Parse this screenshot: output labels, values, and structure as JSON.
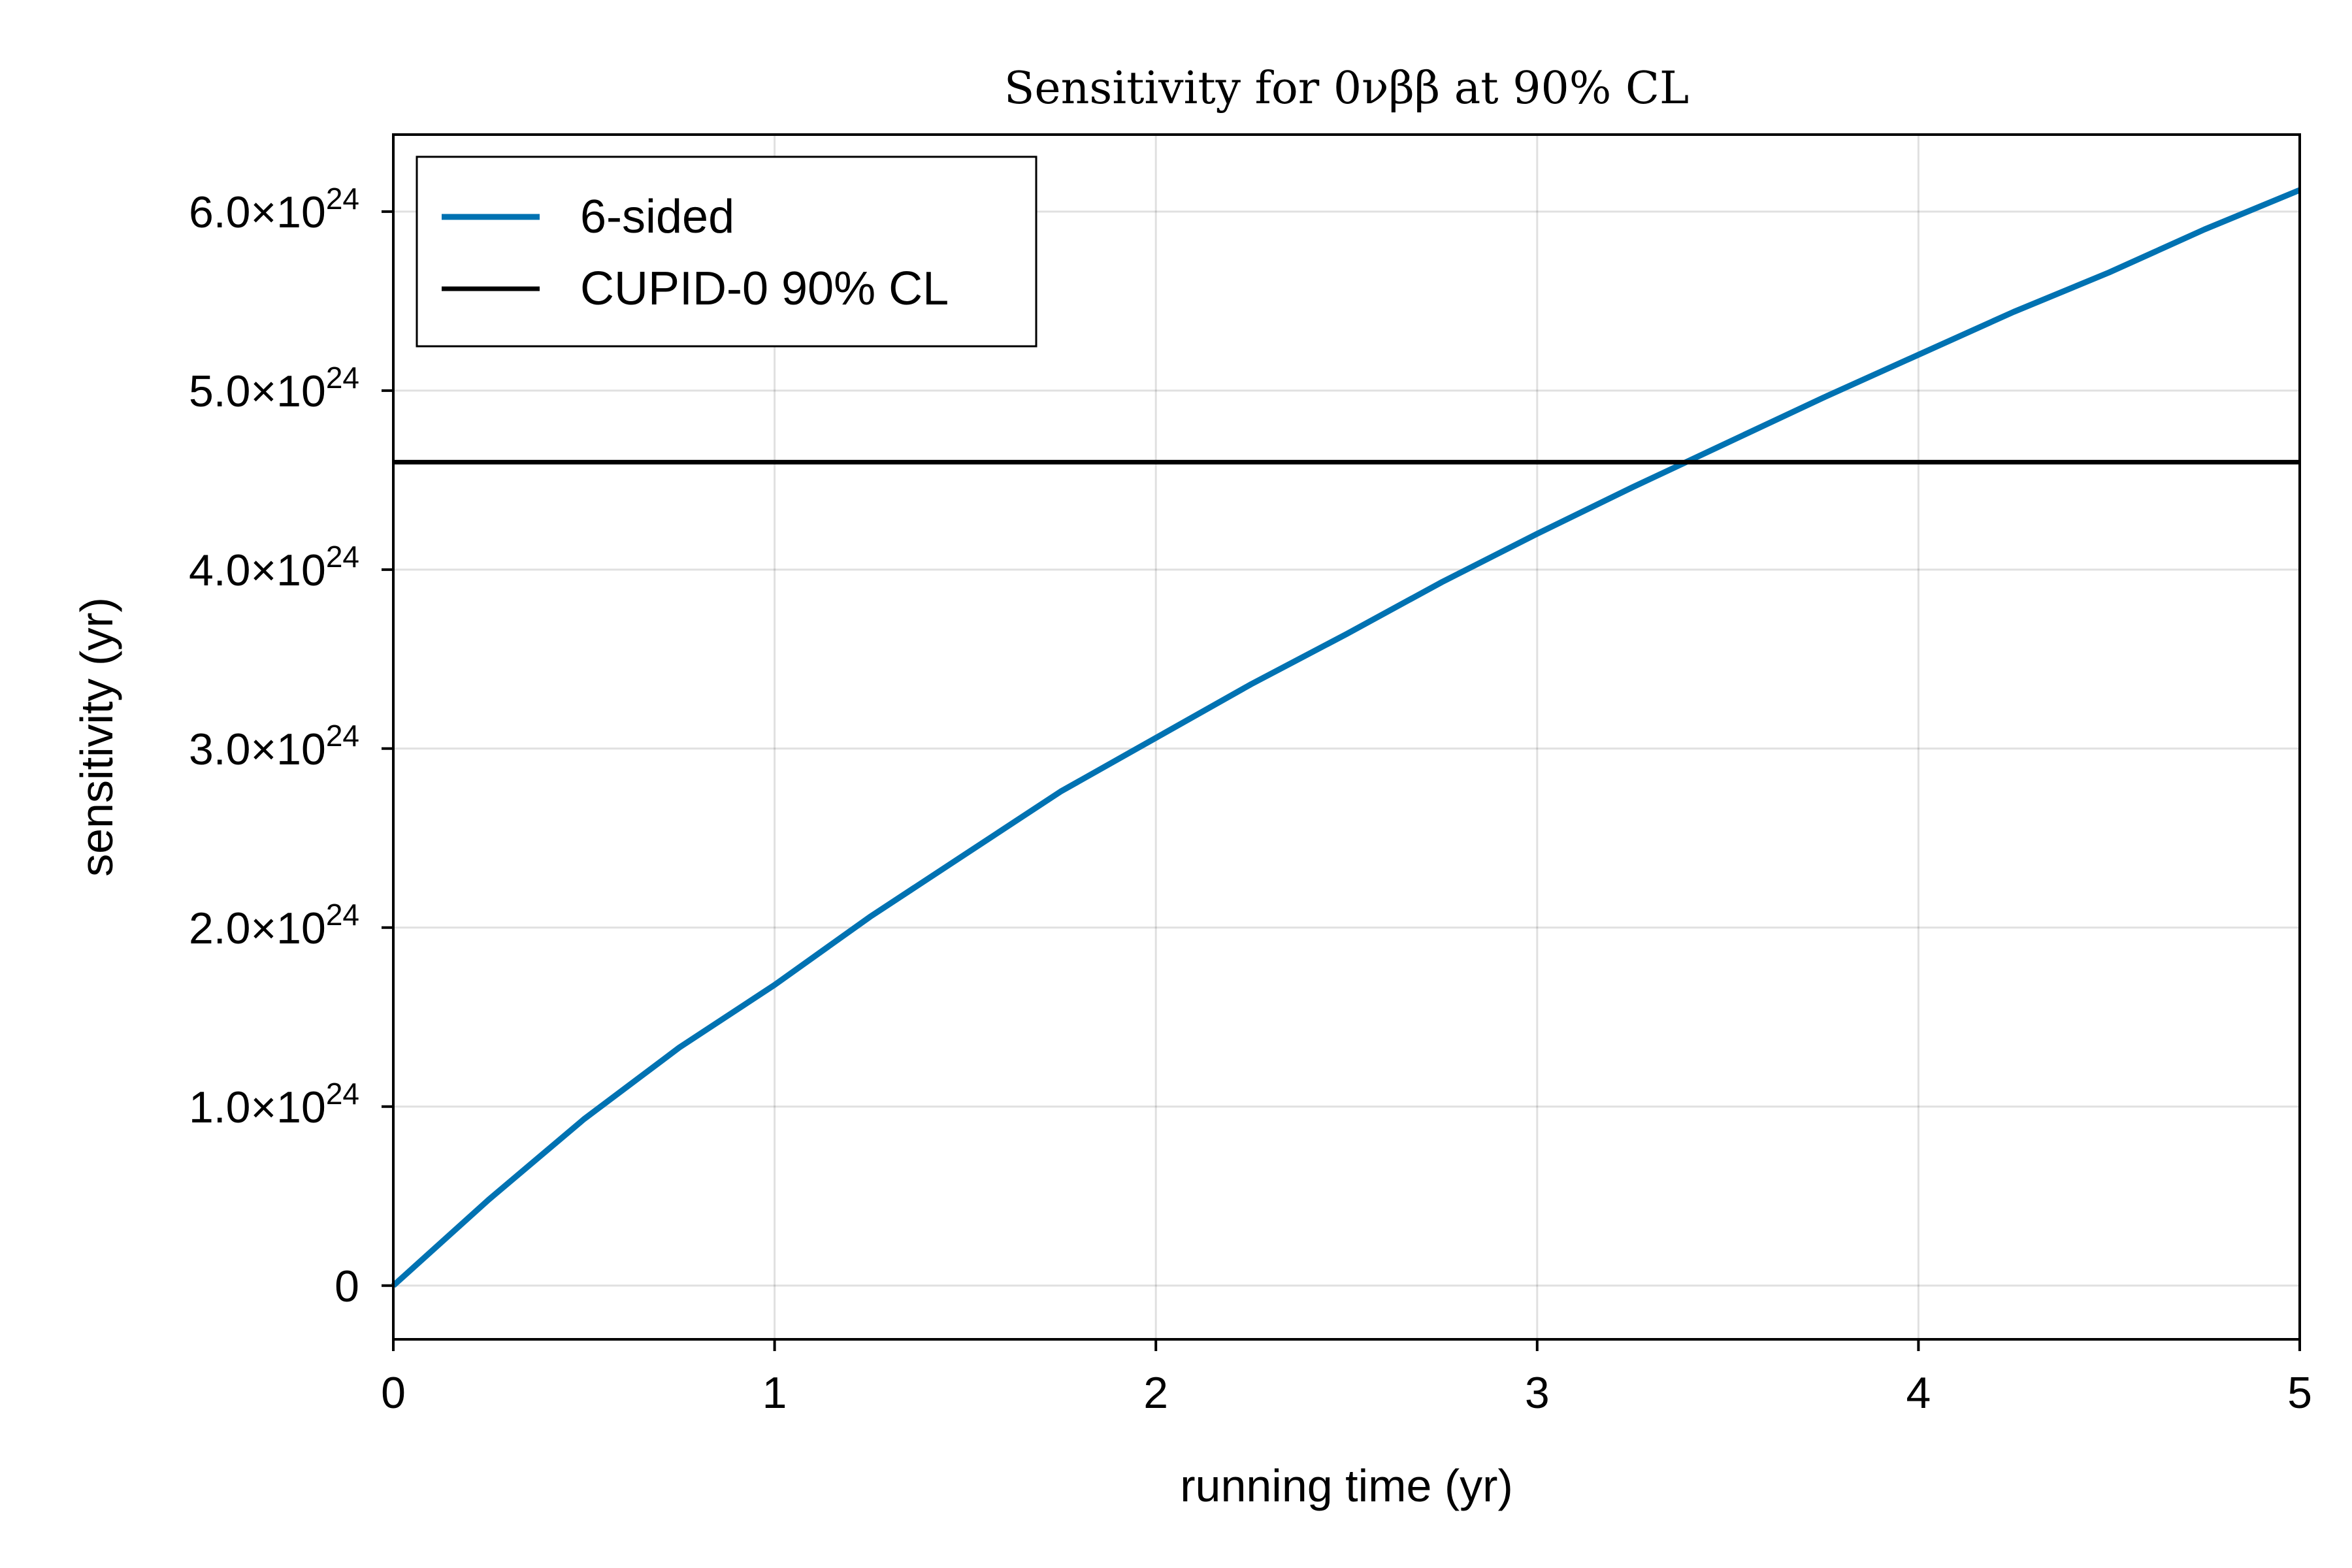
{
  "chart_data": {
    "type": "line",
    "title": "Sensitivity for 0νββ at 90% CL",
    "xlabel": "running time (yr)",
    "ylabel": "sensitivity (yr)",
    "xlim": [
      0,
      5
    ],
    "ylim": [
      -3e+23,
      6.43e+24
    ],
    "grid": true,
    "legend_position": "top-left",
    "x_ticks": [
      {
        "value": 0,
        "label": "0"
      },
      {
        "value": 1,
        "label": "1"
      },
      {
        "value": 2,
        "label": "2"
      },
      {
        "value": 3,
        "label": "3"
      },
      {
        "value": 4,
        "label": "4"
      },
      {
        "value": 5,
        "label": "5"
      }
    ],
    "y_ticks": [
      {
        "value": 0,
        "label": "0",
        "exp": ""
      },
      {
        "value": 1e+24,
        "label": "1.0×10",
        "exp": "24"
      },
      {
        "value": 2e+24,
        "label": "2.0×10",
        "exp": "24"
      },
      {
        "value": 3e+24,
        "label": "3.0×10",
        "exp": "24"
      },
      {
        "value": 4e+24,
        "label": "4.0×10",
        "exp": "24"
      },
      {
        "value": 5e+24,
        "label": "5.0×10",
        "exp": "24"
      },
      {
        "value": 6e+24,
        "label": "6.0×10",
        "exp": "24"
      }
    ],
    "series": [
      {
        "name": "6-sided",
        "color": "#0072b2",
        "x": [
          0,
          0.25,
          0.5,
          0.75,
          1.0,
          1.25,
          1.5,
          1.75,
          2.0,
          2.25,
          2.5,
          2.75,
          3.0,
          3.25,
          3.5,
          3.75,
          4.0,
          4.25,
          4.5,
          4.75,
          5.0
        ],
        "y": [
          0,
          4.8e+23,
          9.3e+23,
          1.33e+24,
          1.68e+24,
          2.06e+24,
          2.41e+24,
          2.76e+24,
          3.06e+24,
          3.36e+24,
          3.64e+24,
          3.93e+24,
          4.2e+24,
          4.46e+24,
          4.71e+24,
          4.96e+24,
          5.2e+24,
          5.44e+24,
          5.66e+24,
          5.9e+24,
          6.12e+24
        ]
      },
      {
        "name": "CUPID-0 90% CL",
        "color": "#000000",
        "x": [
          0,
          5
        ],
        "y": [
          4.6e+24,
          4.6e+24
        ]
      }
    ]
  }
}
